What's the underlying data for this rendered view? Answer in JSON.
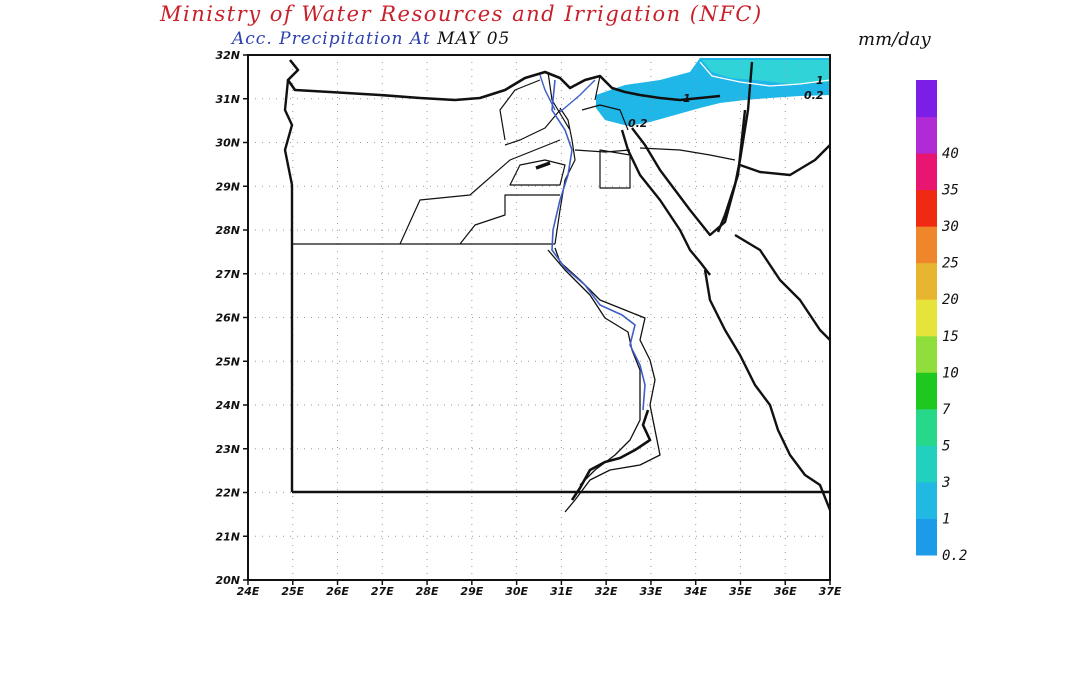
{
  "header": {
    "title": "Ministry of Water Resources and Irrigation (NFC)",
    "subtitle_prefix": "Acc. Precipitation",
    "subtitle_at": "At",
    "subtitle_date": "MAY 05",
    "units": "mm/day"
  },
  "map": {
    "region": "Egypt",
    "lat_labels": [
      "32N",
      "31N",
      "30N",
      "29N",
      "28N",
      "27N",
      "26N",
      "25N",
      "24N",
      "23N",
      "22N",
      "21N",
      "20N"
    ],
    "lon_labels": [
      "24E",
      "25E",
      "26E",
      "27E",
      "28E",
      "29E",
      "30E",
      "31E",
      "32E",
      "33E",
      "34E",
      "35E",
      "36E",
      "37E"
    ],
    "lat_range": [
      20,
      32
    ],
    "lon_range": [
      24,
      37
    ],
    "contour_labels": [
      "1",
      "0.2",
      "0.2",
      "1"
    ],
    "precip_color": "#1fb6e8",
    "precip_color_light": "#2fd3d8"
  },
  "colorbar": {
    "labels": [
      "0.2",
      "1",
      "3",
      "5",
      "7",
      "10",
      "15",
      "20",
      "25",
      "30",
      "35",
      "40"
    ],
    "colors": [
      "#1e9be8",
      "#22b8e4",
      "#22d0c0",
      "#27d88a",
      "#1ec81e",
      "#8fde3c",
      "#e6e43a",
      "#e8b530",
      "#f0862c",
      "#f02a12",
      "#e81670",
      "#b02ad6",
      "#7b1ee6"
    ]
  }
}
